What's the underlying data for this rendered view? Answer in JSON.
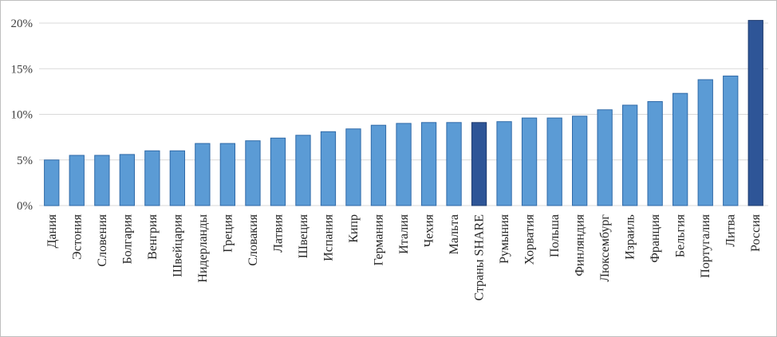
{
  "chart_data": {
    "type": "bar",
    "categories": [
      "Дания",
      "Эстония",
      "Словения",
      "Болгария",
      "Венгрия",
      "Швейцария",
      "Нидерланды",
      "Греция",
      "Словакия",
      "Латвия",
      "Швеция",
      "Испания",
      "Кипр",
      "Германия",
      "Италия",
      "Чехия",
      "Мальта",
      "Страны SHARE",
      "Румыния",
      "Хорватия",
      "Польша",
      "Финляндия",
      "Люксембург",
      "Израиль",
      "Франция",
      "Бельгия",
      "Португалия",
      "Литва",
      "Россия"
    ],
    "values": [
      5.0,
      5.5,
      5.5,
      5.6,
      6.0,
      6.0,
      6.8,
      6.8,
      7.1,
      7.4,
      7.7,
      8.1,
      8.4,
      8.8,
      9.0,
      9.1,
      9.1,
      9.1,
      9.2,
      9.6,
      9.6,
      9.8,
      10.5,
      11.0,
      11.4,
      12.3,
      13.8,
      14.2,
      20.3
    ],
    "highlight": [
      "Страны SHARE",
      "Россия"
    ],
    "ylim": [
      0,
      20
    ],
    "yticks": [
      0,
      5,
      10,
      15,
      20
    ],
    "ytick_labels": [
      "0%",
      "5%",
      "10%",
      "15%",
      "20%"
    ],
    "title": "",
    "xlabel": "",
    "ylabel": "",
    "grid": true,
    "colors": {
      "bar": "#5b9bd5",
      "bar_edge": "#2f6aa8",
      "highlight": "#2e5597",
      "highlight_edge": "#1f3b6e",
      "grid": "#d9d9d9"
    }
  }
}
